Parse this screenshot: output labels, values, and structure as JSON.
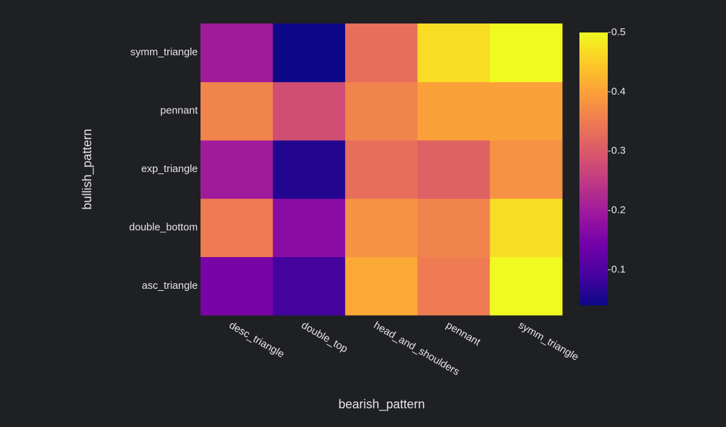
{
  "chart_data": {
    "type": "heatmap",
    "x_label": "bearish_pattern",
    "y_label": "bullish_pattern",
    "x": [
      "desc_triangle",
      "double_top",
      "head_and_shoulders",
      "pennant",
      "symm_triangle"
    ],
    "y": [
      "asc_triangle",
      "double_bottom",
      "exp_triangle",
      "pennant",
      "symm_triangle"
    ],
    "z": [
      [
        0.15,
        0.09,
        0.41,
        0.35,
        0.5
      ],
      [
        0.35,
        0.17,
        0.38,
        0.36,
        0.47
      ],
      [
        0.2,
        0.06,
        0.33,
        0.31,
        0.38
      ],
      [
        0.36,
        0.28,
        0.36,
        0.4,
        0.4
      ],
      [
        0.2,
        0.04,
        0.33,
        0.47,
        0.5
      ]
    ],
    "zlim": [
      0.04,
      0.5
    ],
    "zticks": [
      0.1,
      0.2,
      0.3,
      0.4,
      0.5
    ],
    "colorscale": [
      "#0d0887",
      "#46039f",
      "#7201a8",
      "#9c179e",
      "#bd3786",
      "#d8576b",
      "#ed7953",
      "#fb9f3a",
      "#fdca26",
      "#f0f921"
    ]
  }
}
